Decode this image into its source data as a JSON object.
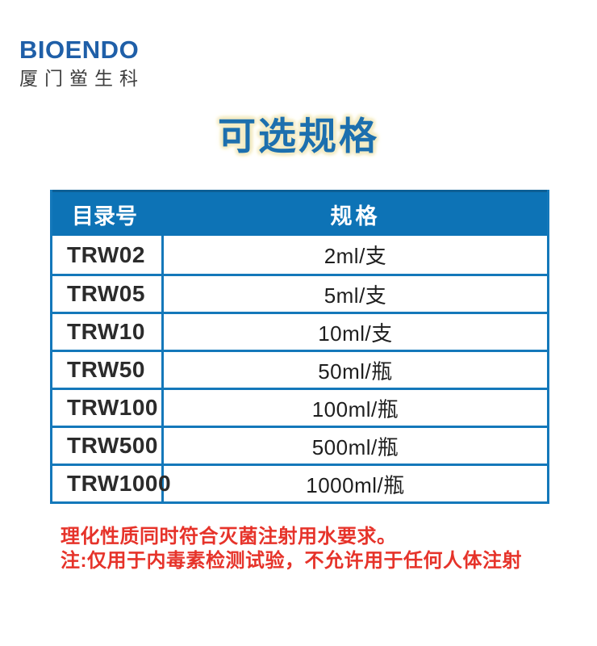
{
  "logo": {
    "brand": "BIOENDO",
    "company": "厦门鲎生科"
  },
  "title": "可选规格",
  "table": {
    "headers": [
      "目录号",
      "规格"
    ],
    "rows": [
      {
        "catalog": "TRW02",
        "spec": "2ml/支"
      },
      {
        "catalog": "TRW05",
        "spec": "5ml/支"
      },
      {
        "catalog": "TRW10",
        "spec": "10ml/支"
      },
      {
        "catalog": "TRW50",
        "spec": "50ml/瓶"
      },
      {
        "catalog": "TRW100",
        "spec": "100ml/瓶"
      },
      {
        "catalog": "TRW500",
        "spec": "500ml/瓶"
      },
      {
        "catalog": "TRW1000",
        "spec": "1000ml/瓶"
      }
    ]
  },
  "notes": [
    "理化性质同时符合灭菌注射用水要求。",
    "注:仅用于内毒素检测试验，不允许用于任何人体注射"
  ],
  "colors": {
    "brand_blue": "#1f5fa8",
    "title_blue": "#1c6fae",
    "title_halo": "#f3ebc3",
    "header_blue": "#0d73b6",
    "border_blue": "#1478ba",
    "note_red": "#e6332a"
  }
}
